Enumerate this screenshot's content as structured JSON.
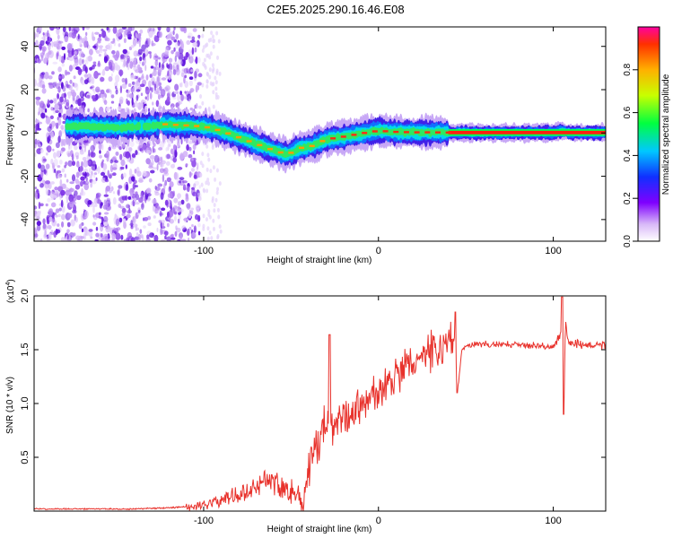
{
  "figure_title": "C2E5.2025.290.16.46.E08",
  "chart_data": [
    {
      "type": "heatmap",
      "title": "C2E5.2025.290.16.46.E08",
      "xlabel": "Height of straight line (km)",
      "ylabel": "Frequency (Hz)",
      "xlim": [
        -197,
        130
      ],
      "ylim": [
        -50,
        49
      ],
      "xticks": [
        -100,
        0,
        100
      ],
      "xtick_labels": [
        "-100",
        "0",
        "100"
      ],
      "yticks": [
        -40,
        -20,
        0,
        20,
        40
      ],
      "ytick_labels": [
        "-40",
        "-20",
        "0",
        "20",
        "40"
      ],
      "colorbar": {
        "label": "Normalized spectral amplitude",
        "range": [
          0,
          1
        ],
        "ticks": [
          0.0,
          0.2,
          0.4,
          0.6,
          0.8
        ],
        "tick_labels": [
          "0.0",
          "0.2",
          "0.4",
          "0.6",
          "0.8"
        ]
      },
      "ridge_frequency_hz": {
        "x": [
          -178,
          -165,
          -150,
          -135,
          -122,
          -110,
          -100,
          -90,
          -80,
          -70,
          -60,
          -52,
          -45,
          -38,
          -30,
          -22,
          -15,
          -8,
          0,
          10,
          20,
          30,
          40,
          60,
          80,
          100,
          104,
          110,
          130
        ],
        "y": [
          3,
          3,
          2.5,
          3,
          4,
          3.5,
          3,
          1,
          -2,
          -5,
          -8,
          -10,
          -7,
          -6,
          -3,
          -2,
          -1,
          0,
          1,
          0.5,
          0.3,
          0.3,
          0.2,
          0.1,
          0.1,
          0.1,
          1,
          0.1,
          0.1
        ]
      },
      "high_amplitude_band": {
        "x_start": 40,
        "x_end": 130,
        "frequency_hz": 0.2
      }
    },
    {
      "type": "line",
      "xlabel": "Height of straight line (km)",
      "ylabel": "SNR (10 * v/v)",
      "y_multiplier_label": "(x10",
      "y_multiplier_exponent": "4",
      "y_multiplier_suffix": ")",
      "xlim": [
        -197,
        130
      ],
      "ylim": [
        0,
        2.0
      ],
      "xticks": [
        -100,
        0,
        100
      ],
      "xtick_labels": [
        "-100",
        "0",
        "100"
      ],
      "yticks": [
        0.5,
        1.0,
        1.5,
        2.0
      ],
      "ytick_labels": [
        "0.5",
        "1.0",
        "1.5",
        "2.0"
      ],
      "series": [
        {
          "name": "SNR",
          "color": "#e8322c",
          "x": [
            -197,
            -180,
            -160,
            -140,
            -120,
            -110,
            -100,
            -90,
            -80,
            -70,
            -64,
            -58,
            -50,
            -43,
            -40,
            -36,
            -32,
            -28,
            -26,
            -24,
            -20,
            -15,
            -10,
            -5,
            0,
            5,
            10,
            15,
            20,
            25,
            30,
            35,
            40,
            44,
            45,
            48,
            55,
            70,
            90,
            100,
            103,
            105,
            106,
            107,
            108,
            112,
            120,
            130
          ],
          "y": [
            0.02,
            0.02,
            0.02,
            0.02,
            0.03,
            0.04,
            0.06,
            0.1,
            0.16,
            0.24,
            0.3,
            0.26,
            0.2,
            0.1,
            0.35,
            0.6,
            0.72,
            0.78,
            0.72,
            0.8,
            0.85,
            0.92,
            0.98,
            1.05,
            1.1,
            1.18,
            1.25,
            1.32,
            1.38,
            1.42,
            1.48,
            1.5,
            1.58,
            1.62,
            1.1,
            1.52,
            1.55,
            1.55,
            1.54,
            1.53,
            1.6,
            1.72,
            0.9,
            1.78,
            1.6,
            1.56,
            1.54,
            1.54
          ]
        }
      ],
      "spikes": [
        {
          "x": -28,
          "y": 1.64
        },
        {
          "x": 44,
          "y": 1.85
        },
        {
          "x": 45,
          "y": 1.1
        },
        {
          "x": 105,
          "y": 1.99
        },
        {
          "x": 106,
          "y": 0.9
        }
      ]
    }
  ]
}
